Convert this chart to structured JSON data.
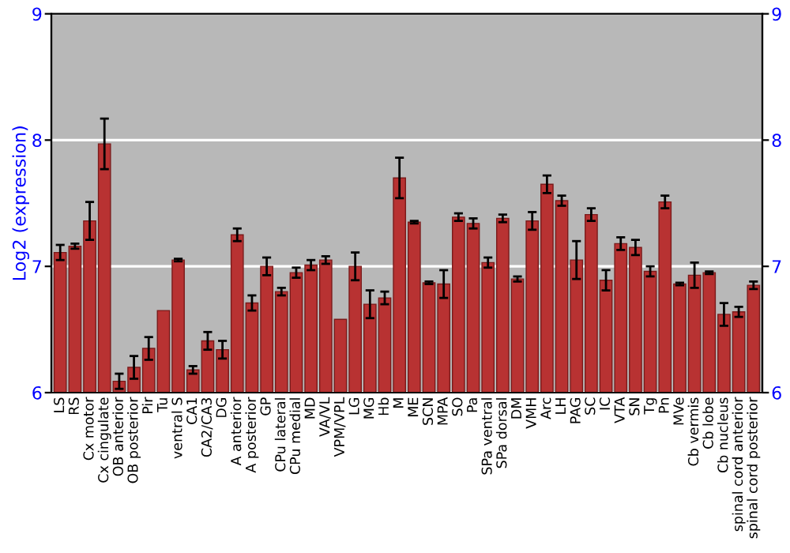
{
  "chart_data": {
    "type": "bar",
    "ylabel": "Log2 (expression)",
    "categories": [
      "LS",
      "RS",
      "Cx motor",
      "Cx cingulate",
      "OB anterior",
      "OB posterior",
      "Pir",
      "Tu",
      "ventral S",
      "CA1",
      "CA2/CA3",
      "DG",
      "A anterior",
      "A posterior",
      "GP",
      "CPu lateral",
      "CPu medial",
      "MD",
      "VA/VL",
      "VPM/VPL",
      "LG",
      "MG",
      "Hb",
      "M",
      "ME",
      "SCN",
      "MPA",
      "SO",
      "Pa",
      "SPa ventral",
      "SPa dorsal",
      "DM",
      "VMH",
      "Arc",
      "LH",
      "PAG",
      "SC",
      "IC",
      "VTA",
      "SN",
      "Tg",
      "Pn",
      "MVe",
      "Cb vermis",
      "Cb lobe",
      "Cb nucleus",
      "spinal cord anterior",
      "spinal cord posterior"
    ],
    "values": [
      7.11,
      7.16,
      7.36,
      7.97,
      6.09,
      6.2,
      6.35,
      6.65,
      7.05,
      6.18,
      6.41,
      6.34,
      7.25,
      6.71,
      7.0,
      6.8,
      6.95,
      7.01,
      7.05,
      6.58,
      7.0,
      6.7,
      6.75,
      7.7,
      7.35,
      6.87,
      6.86,
      7.39,
      7.34,
      7.03,
      7.38,
      6.9,
      7.36,
      7.65,
      7.52,
      7.05,
      7.41,
      6.89,
      7.18,
      7.15,
      6.96,
      7.51,
      6.86,
      6.93,
      6.95,
      6.62,
      6.64,
      6.85
    ],
    "errors": [
      0.06,
      0.02,
      0.15,
      0.2,
      0.06,
      0.09,
      0.09,
      null,
      0.01,
      0.03,
      0.07,
      0.07,
      0.05,
      0.06,
      0.07,
      0.03,
      0.04,
      0.04,
      0.03,
      null,
      0.11,
      0.11,
      0.05,
      0.16,
      0.01,
      0.01,
      0.11,
      0.03,
      0.04,
      0.04,
      0.03,
      0.02,
      0.07,
      0.07,
      0.04,
      0.15,
      0.05,
      0.08,
      0.05,
      0.06,
      0.04,
      0.05,
      0.01,
      0.1,
      0.01,
      0.09,
      0.04,
      0.03
    ],
    "color": "#b83232",
    "ylim": [
      6,
      9
    ],
    "yticks": [
      6,
      7,
      8,
      9
    ],
    "y2lim": [
      6,
      9
    ],
    "y2ticks": [
      6,
      7,
      8,
      9
    ],
    "grid": "y"
  }
}
